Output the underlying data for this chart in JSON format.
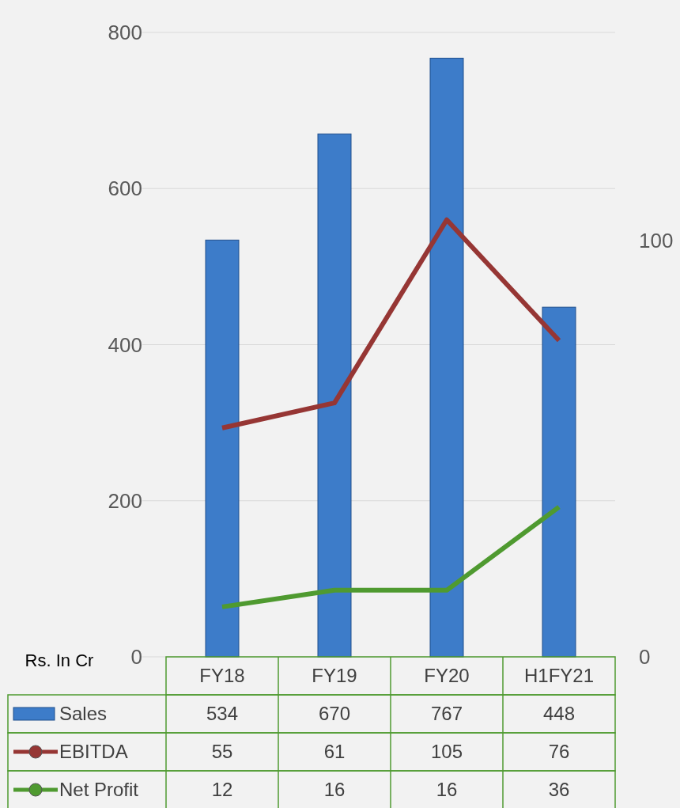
{
  "chart_data": {
    "type": "bar",
    "ylabel": "Rs. In Cr",
    "categories": [
      "FY18",
      "FY19",
      "FY20",
      "H1FY21"
    ],
    "series": [
      {
        "name": "Sales",
        "color": "#3d7cc9",
        "values": [
          534,
          670,
          767,
          448
        ]
      },
      {
        "name": "EBITDA",
        "type": "line",
        "axis": "y2",
        "color": "#963634",
        "values": [
          55,
          61,
          105,
          76
        ]
      },
      {
        "name": "Net Profit",
        "type": "line",
        "axis": "y2",
        "color": "#4f9a30",
        "values": [
          12,
          16,
          16,
          36
        ]
      }
    ],
    "ylim": [
      0,
      800
    ],
    "yticks": [
      0,
      200,
      400,
      600,
      800
    ],
    "y2lim": [
      0,
      150
    ],
    "y2ticks": [
      0,
      100
    ],
    "grid": "y",
    "data_labels": true,
    "legend": "bottom"
  }
}
